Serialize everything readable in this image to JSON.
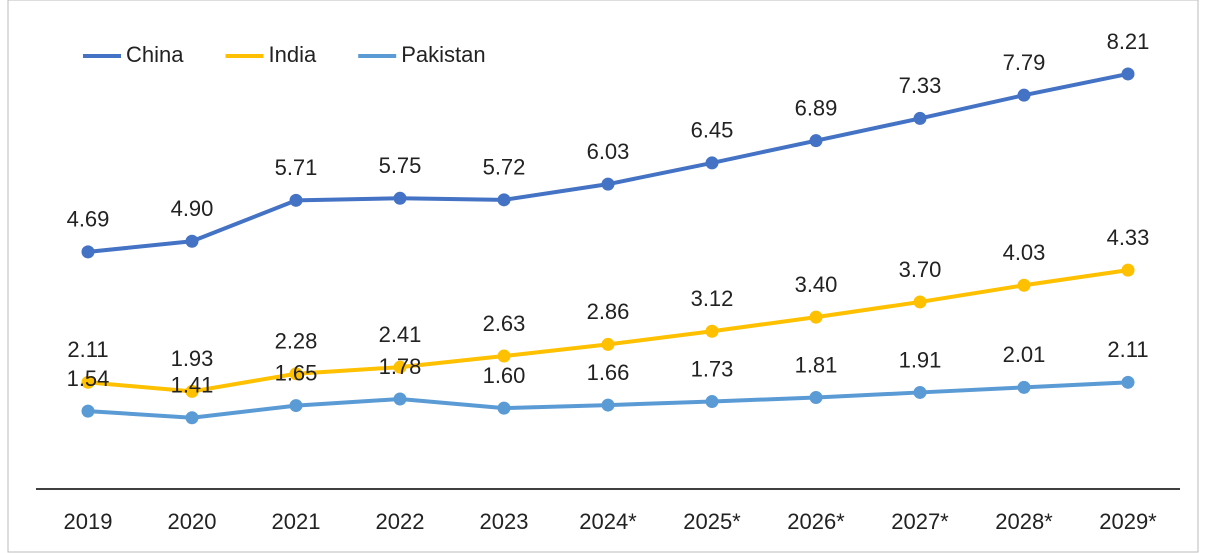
{
  "chart_data": {
    "type": "line",
    "categories": [
      "2019",
      "2020",
      "2021",
      "2022",
      "2023",
      "2024*",
      "2025*",
      "2026*",
      "2027*",
      "2028*",
      "2029*"
    ],
    "series": [
      {
        "name": "China",
        "color": "#4472c4",
        "values": [
          4.69,
          4.9,
          5.71,
          5.75,
          5.72,
          6.03,
          6.45,
          6.89,
          7.33,
          7.79,
          8.21
        ],
        "value_labels": [
          "4.69",
          "4.90",
          "5.71",
          "5.75",
          "5.72",
          "6.03",
          "6.45",
          "6.89",
          "7.33",
          "7.79",
          "8.21"
        ]
      },
      {
        "name": "India",
        "color": "#ffc000",
        "values": [
          2.11,
          1.93,
          2.28,
          2.41,
          2.63,
          2.86,
          3.12,
          3.4,
          3.7,
          4.03,
          4.33
        ],
        "value_labels": [
          "2.11",
          "1.93",
          "2.28",
          "2.41",
          "2.63",
          "2.86",
          "3.12",
          "3.40",
          "3.70",
          "4.03",
          "4.33"
        ]
      },
      {
        "name": "Pakistan",
        "color": "#5b9bd5",
        "values": [
          1.54,
          1.41,
          1.65,
          1.78,
          1.6,
          1.66,
          1.73,
          1.81,
          1.91,
          2.01,
          2.11
        ],
        "value_labels": [
          "1.54",
          "1.41",
          "1.65",
          "1.78",
          "1.60",
          "1.66",
          "1.73",
          "1.81",
          "1.91",
          "2.01",
          "2.11"
        ]
      }
    ],
    "ylim": [
      0,
      9
    ],
    "legend": "top-left"
  }
}
